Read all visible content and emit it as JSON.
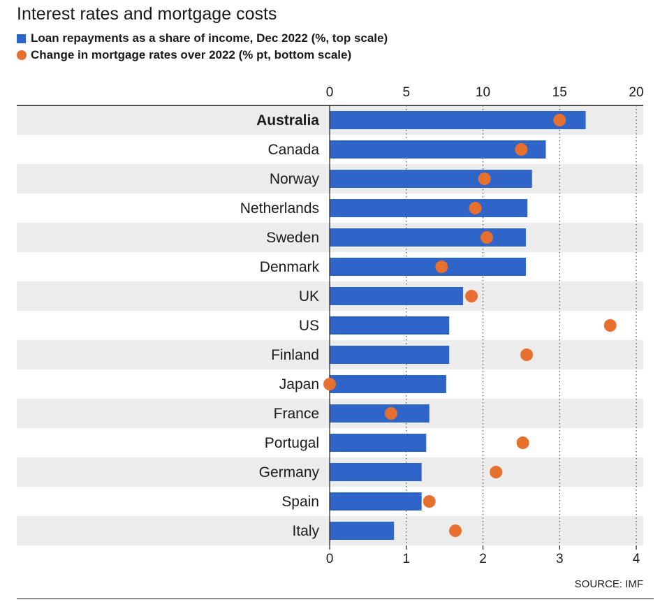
{
  "title": "Interest rates and mortgage costs",
  "legend": {
    "series1": "Loan repayments as a share of income, Dec 2022 (%, top scale)",
    "series2": "Change in mortgage rates over 2022 (% pt, bottom scale)"
  },
  "source": "SOURCE: IMF",
  "colors": {
    "bar": "#2f64c8",
    "dot": "#e8702f",
    "band": "#ececec"
  },
  "chart_data": {
    "type": "bar",
    "orientation": "horizontal",
    "categories": [
      "Australia",
      "Canada",
      "Norway",
      "Netherlands",
      "Sweden",
      "Denmark",
      "UK",
      "US",
      "Finland",
      "Japan",
      "France",
      "Portugal",
      "Germany",
      "Spain",
      "Italy"
    ],
    "highlight_category": "Australia",
    "series": [
      {
        "name": "Loan repayments as a share of income, Dec 2022 (%, top scale)",
        "type": "bar",
        "axis": "top",
        "values": [
          16.7,
          14.1,
          13.2,
          12.9,
          12.8,
          12.8,
          8.7,
          7.8,
          7.8,
          7.6,
          6.5,
          6.3,
          6.0,
          6.0,
          4.2
        ]
      },
      {
        "name": "Change in mortgage rates over 2022 (% pt, bottom scale)",
        "type": "scatter",
        "axis": "bottom",
        "values": [
          3.0,
          2.5,
          2.02,
          1.9,
          2.05,
          1.46,
          1.85,
          3.66,
          2.57,
          0.0,
          0.8,
          2.52,
          2.17,
          1.3,
          1.64
        ]
      }
    ],
    "top_axis": {
      "min": 0,
      "max": 20,
      "ticks": [
        0,
        5,
        10,
        15,
        20
      ]
    },
    "bottom_axis": {
      "min": 0,
      "max": 4,
      "ticks": [
        0,
        1,
        2,
        3,
        4
      ]
    },
    "grid": "dotted-vertical",
    "legend_position": "top-left"
  }
}
